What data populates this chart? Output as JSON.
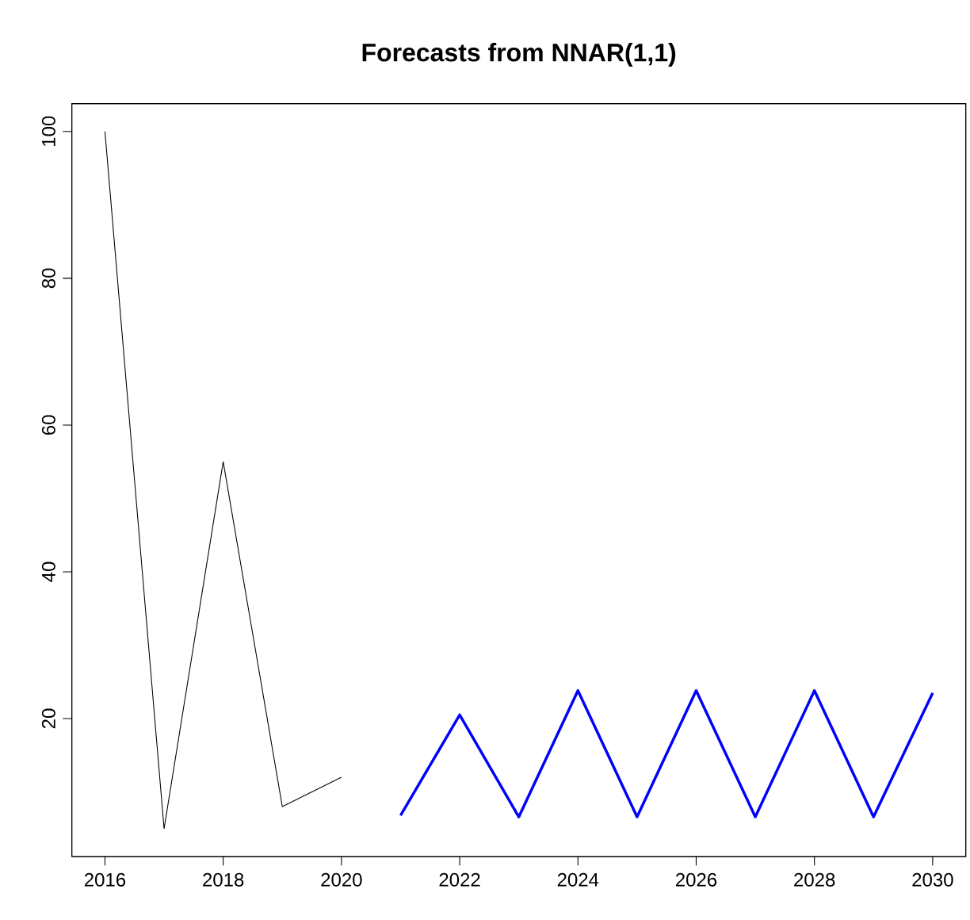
{
  "chart_data": {
    "type": "line",
    "title": "Forecasts from NNAR(1,1)",
    "xlim": [
      2015.44,
      2030.56
    ],
    "ylim": [
      1.2,
      103.8
    ],
    "xticks": [
      2016,
      2018,
      2020,
      2022,
      2024,
      2026,
      2028,
      2030
    ],
    "yticks": [
      20,
      40,
      60,
      80,
      100
    ],
    "series": [
      {
        "color": "#000000",
        "x": [
          2016,
          2017,
          2018,
          2019,
          2020
        ],
        "values": [
          100,
          5,
          55,
          8,
          12
        ]
      },
      {
        "color": "#0000ff",
        "x": [
          2021,
          2022,
          2023,
          2024,
          2025,
          2026,
          2027,
          2028,
          2029,
          2030
        ],
        "values": [
          6.8,
          20.5,
          6.6,
          23.8,
          6.6,
          23.8,
          6.6,
          23.8,
          6.6,
          23.5
        ]
      }
    ]
  }
}
